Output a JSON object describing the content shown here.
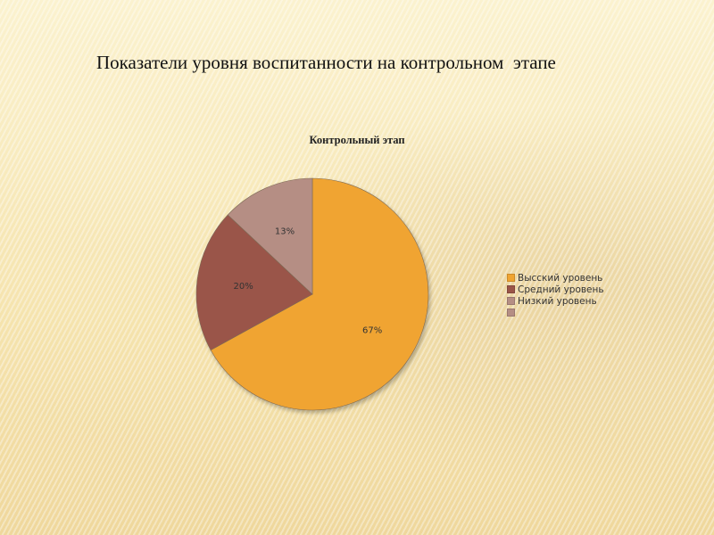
{
  "slide": {
    "title": "Показатели уровня воспитанности на контрольном  этапе"
  },
  "chart_data": {
    "type": "pie",
    "title": "Контрольный этап",
    "legend_position": "right",
    "categories": [
      "Высский уровень",
      "Средний уровень",
      "Низкий уровень",
      ""
    ],
    "values": [
      67,
      20,
      13,
      0
    ],
    "labels": [
      "67%",
      "20%",
      "13%",
      ""
    ],
    "colors": [
      "#f0a431",
      "#9a5548",
      "#b58e84",
      "#b58e84"
    ]
  }
}
